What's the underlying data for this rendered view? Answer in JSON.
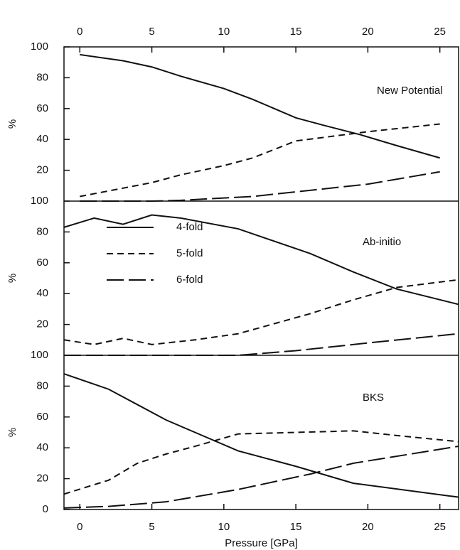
{
  "chart_data": [
    {
      "type": "line",
      "annotation": "New Potential",
      "ylabel": "%",
      "xlim": [
        -1.1,
        26.3
      ],
      "xticks": [
        0,
        5,
        10,
        15,
        20,
        25
      ],
      "xticks_side": "top",
      "ylim": [
        0,
        100
      ],
      "yticks": [
        20,
        40,
        60,
        80,
        100
      ],
      "series": [
        {
          "dash": "solid",
          "x": [
            0,
            3,
            5,
            7,
            10,
            12,
            15,
            17,
            19.5,
            22,
            25
          ],
          "values": [
            95,
            91,
            87,
            81,
            73,
            66,
            54,
            49,
            43,
            36,
            28
          ]
        },
        {
          "dash": "short",
          "x": [
            0,
            5,
            7,
            10,
            12,
            15,
            20,
            25
          ],
          "values": [
            3,
            12,
            17,
            23,
            28,
            39,
            45,
            50
          ]
        },
        {
          "dash": "long",
          "x": [
            0,
            5,
            7,
            10,
            12,
            15,
            20,
            25
          ],
          "values": [
            0,
            0,
            0.5,
            2,
            3,
            6,
            11,
            19
          ]
        }
      ]
    },
    {
      "type": "line",
      "annotation": "Ab-initio",
      "ylabel": "%",
      "xlim": [
        -1.1,
        26.3
      ],
      "ylim": [
        0,
        100
      ],
      "yticks": [
        20,
        40,
        60,
        80,
        100
      ],
      "legend": "left",
      "series": [
        {
          "name": "4-fold",
          "dash": "solid",
          "x": [
            -1.1,
            1,
            3,
            5,
            7,
            11,
            16,
            19,
            22,
            26.3
          ],
          "values": [
            83,
            89,
            85,
            91,
            89,
            82,
            66,
            54,
            43,
            33
          ]
        },
        {
          "name": "5-fold",
          "dash": "short",
          "x": [
            -1.1,
            1,
            3,
            5,
            8,
            11,
            16,
            19,
            22,
            26.3
          ],
          "values": [
            10,
            7,
            11,
            7,
            10,
            14,
            27,
            36,
            44,
            49
          ]
        },
        {
          "name": "6-fold",
          "dash": "long",
          "x": [
            -1.1,
            5,
            11,
            15,
            20,
            26.3
          ],
          "values": [
            0,
            0,
            0,
            3,
            8,
            14
          ]
        }
      ]
    },
    {
      "type": "line",
      "annotation": "BKS",
      "ylabel": "%",
      "xlabel": "Pressure [GPa]",
      "xlim": [
        -1.1,
        26.3
      ],
      "xticks": [
        0,
        5,
        10,
        15,
        20,
        25
      ],
      "xticks_side": "bottom",
      "ylim": [
        0,
        100
      ],
      "yticks": [
        0,
        20,
        40,
        60,
        80,
        100
      ],
      "series": [
        {
          "dash": "solid",
          "x": [
            -1.1,
            2,
            4,
            6,
            8,
            11,
            15,
            19,
            26.3
          ],
          "values": [
            88,
            78,
            68,
            58,
            50,
            38,
            28,
            17,
            8
          ]
        },
        {
          "dash": "short",
          "x": [
            -1.1,
            2,
            4,
            6,
            8,
            11,
            15,
            19,
            22,
            26.3
          ],
          "values": [
            10,
            19,
            30,
            36,
            41,
            49,
            50,
            51,
            48,
            44
          ]
        },
        {
          "dash": "long",
          "x": [
            -1.1,
            2,
            6,
            11,
            16,
            19,
            26.3
          ],
          "values": [
            1,
            2,
            5,
            13,
            23,
            30,
            41
          ]
        }
      ]
    }
  ]
}
